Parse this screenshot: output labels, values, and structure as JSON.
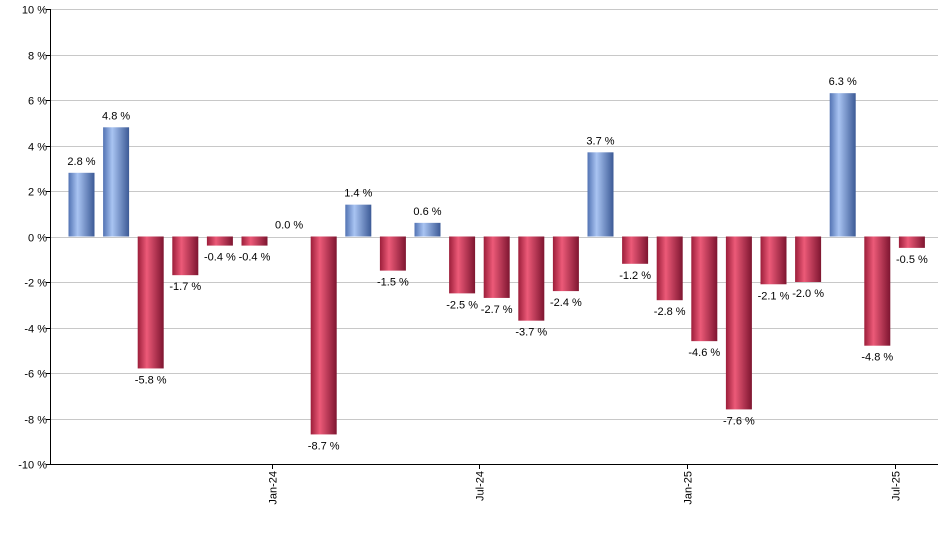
{
  "chart_data": {
    "type": "bar",
    "title": "",
    "xlabel": "",
    "ylabel": "",
    "ylim": [
      -10,
      10
    ],
    "ytick_step": 2,
    "ytick_suffix": " %",
    "grid": true,
    "colors": {
      "positive": "#7b9fdc",
      "negative": "#c8304e"
    },
    "values": [
      2.8,
      4.8,
      -5.8,
      -1.7,
      -0.4,
      -0.4,
      0.0,
      -8.7,
      1.4,
      -1.5,
      0.6,
      -2.5,
      -2.7,
      -3.7,
      -2.4,
      3.7,
      -1.2,
      -2.8,
      -4.6,
      -7.6,
      -2.1,
      -2.0,
      6.3,
      -4.8,
      -0.5
    ],
    "data_labels": [
      "2.8 %",
      "4.8 %",
      "-5.8 %",
      "-1.7 %",
      "-0.4 %",
      "-0.4 %",
      "0.0 %",
      "-8.7 %",
      "1.4 %",
      "-1.5 %",
      "0.6 %",
      "-2.5 %",
      "-2.7 %",
      "-3.7 %",
      "-2.4 %",
      "3.7 %",
      "-1.2 %",
      "-2.8 %",
      "-4.6 %",
      "-7.6 %",
      "-2.1 %",
      "-2.0 %",
      "6.3 %",
      "-4.8 %",
      "-0.5 %"
    ],
    "x_ticks": [
      {
        "label": "Jan-24",
        "bar_index": 5.5
      },
      {
        "label": "Jul-24",
        "bar_index": 11.5
      },
      {
        "label": "Jan-25",
        "bar_index": 17.5
      },
      {
        "label": "Jul-25",
        "bar_index": 23.5
      }
    ]
  }
}
